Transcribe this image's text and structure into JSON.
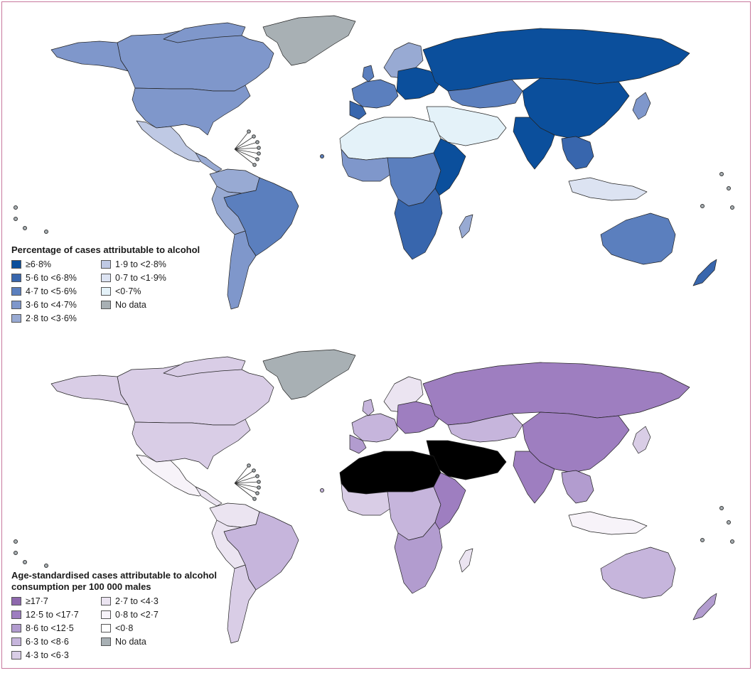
{
  "palettes": {
    "blue": [
      "#0b4f9c",
      "#3866ad",
      "#5b7fbe",
      "#7f97cb",
      "#98aad3",
      "#bfc9e4",
      "#dce3f2",
      "#e4f2f9",
      "#a8b0b4"
    ],
    "purple": [
      "#8e68ad",
      "#9e7ec0",
      "#b29ccf",
      "#c6b5dc",
      "#d9cde6",
      "#ebe4f1",
      "#f7f3f9",
      "#a8b0b4"
    ]
  },
  "map1": {
    "legend": {
      "title": "Percentage of cases attributable to alcohol",
      "items": [
        {
          "label": "≥6·8%",
          "color": "#0b4f9c"
        },
        {
          "label": "5·6 to <6·8%",
          "color": "#3866ad"
        },
        {
          "label": "4·7 to <5·6%",
          "color": "#5b7fbe"
        },
        {
          "label": "3·6 to <4·7%",
          "color": "#7f97cb"
        },
        {
          "label": "2·8 to <3·6%",
          "color": "#98aad3"
        },
        {
          "label": "1·9 to <2·8%",
          "color": "#bfc9e4"
        },
        {
          "label": "0·7 to <1·9%",
          "color": "#dce3f2"
        },
        {
          "label": "<0·7%",
          "color": "#e4f2f9"
        },
        {
          "label": "No data",
          "color": "#a8b0b4"
        }
      ]
    }
  },
  "map2": {
    "legend": {
      "title_line1": "Age-standardised cases attributable to alcohol",
      "title_line2": "consumption per 100 000 males",
      "items": [
        {
          "label": "≥17·7",
          "color": "#8e68ad"
        },
        {
          "label": "12·5 to <17·7",
          "color": "#9e7ec0"
        },
        {
          "label": "8·6 to <12·5",
          "color": "#b29ccf"
        },
        {
          "label": "6·3 to <8·6",
          "color": "#c6b5dc"
        },
        {
          "label": "4·3 to <6·3",
          "color": "#d9cde6"
        },
        {
          "label": "2·7 to <4·3",
          "color": "#ebe4f1"
        },
        {
          "label": "0·8 to <2·7",
          "color": "#f7f3f9"
        },
        {
          "label": "<0·8",
          "color": "#ffffff"
        },
        {
          "label": "No data",
          "color": "#a8b0b4"
        }
      ]
    }
  }
}
